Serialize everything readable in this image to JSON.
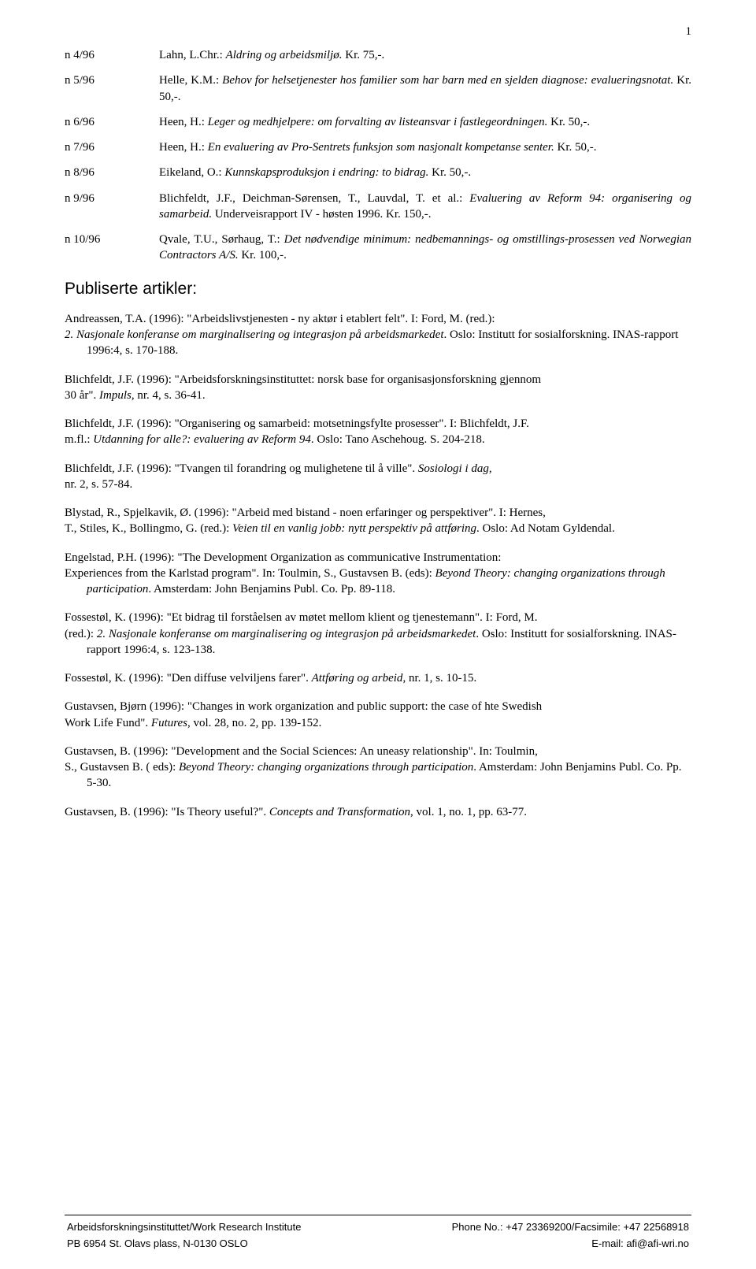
{
  "page_number": "1",
  "entries": [
    {
      "id": "n 4/96",
      "plain_pre": "Lahn, L.Chr.: ",
      "italic": "Aldring og arbeidsmiljø.",
      "plain_post": " Kr. 75,-."
    },
    {
      "id": "n 5/96",
      "plain_pre": "Helle, K.M.: ",
      "italic": "Behov for helsetjenester hos familier som har barn med en sjelden diagnose: evalueringsnotat.",
      "plain_post": " Kr. 50,-."
    },
    {
      "id": "n 6/96",
      "plain_pre": "Heen, H.: ",
      "italic": "Leger og medhjelpere: om forvalting av listeansvar i fastlegeordningen.",
      "plain_post": " Kr. 50,-."
    },
    {
      "id": "n 7/96",
      "plain_pre": "Heen, H.: ",
      "italic": "En evaluering av Pro-Sentrets funksjon som nasjonalt kompetanse senter.",
      "plain_post": " Kr. 50,-."
    },
    {
      "id": "n 8/96",
      "plain_pre": "Eikeland, O.: ",
      "italic": "Kunnskapsproduksjon i endring: to bidrag.",
      "plain_post": " Kr. 50,-."
    },
    {
      "id": "n 9/96",
      "plain_pre": "Blichfeldt, J.F., Deichman-Sørensen, T., Lauvdal, T. et al.: ",
      "italic": "Evaluering av Reform 94: organisering og samarbeid.",
      "plain_post": " Underveisrapport IV - høsten 1996. Kr. 150,-."
    },
    {
      "id": "n 10/96",
      "plain_pre": "Qvale, T.U., Sørhaug, T.: ",
      "italic": "Det nødvendige minimum: nedbemannings- og omstillings-prosessen ved Norwegian Contractors A/S.",
      "plain_post": " Kr. 100,-."
    }
  ],
  "section_heading": "Publiserte artikler:",
  "articles": [
    {
      "lines": [
        [
          {
            "t": "Andreassen, T.A. (1996): \"Arbeidslivstjenesten - ny aktør i etablert felt\". I: Ford, M. (red.):"
          }
        ],
        [
          {
            "t": "2. Nasjonale konferanse om marginalisering og integrasjon på arbeidsmarkedet",
            "i": true
          },
          {
            "t": ". Oslo: Institutt for sosialforskning. INAS-rapport 1996:4, s. 170-188."
          }
        ]
      ]
    },
    {
      "lines": [
        [
          {
            "t": "Blichfeldt, J.F. (1996): \"Arbeidsforskningsinstituttet: norsk base for organisasjonsforskning gjennom"
          }
        ],
        [
          {
            "t": "30 år\". "
          },
          {
            "t": "Impuls",
            "i": true
          },
          {
            "t": ",  nr. 4, s. 36-41."
          }
        ]
      ]
    },
    {
      "lines": [
        [
          {
            "t": "Blichfeldt, J.F. (1996): \"Organisering og samarbeid: motsetningsfylte prosesser\". I: Blichfeldt, J.F."
          }
        ],
        [
          {
            "t": "m.fl.: "
          },
          {
            "t": "Utdanning for alle?: evaluering av Reform 94",
            "i": true
          },
          {
            "t": ". Oslo: Tano Aschehoug. S. 204-218."
          }
        ]
      ]
    },
    {
      "lines": [
        [
          {
            "t": "Blichfeldt, J.F. (1996): \"Tvangen til forandring og mulighetene til å ville\". "
          },
          {
            "t": "Sosiologi i dag",
            "i": true
          },
          {
            "t": ","
          }
        ],
        [
          {
            "t": "nr. 2, s. 57-84."
          }
        ]
      ]
    },
    {
      "lines": [
        [
          {
            "t": "Blystad, R., Spjelkavik, Ø. (1996): \"Arbeid med bistand - noen erfaringer og perspektiver\". I: Hernes,"
          }
        ],
        [
          {
            "t": "T., Stiles, K., Bollingmo, G. (red.): "
          },
          {
            "t": "Veien til en vanlig jobb: nytt perspektiv på attføring",
            "i": true
          },
          {
            "t": ". Oslo: Ad Notam Gyldendal."
          }
        ]
      ]
    },
    {
      "lines": [
        [
          {
            "t": "Engelstad, P.H. (1996): \"The Development Organization as communicative Instrumentation:"
          }
        ],
        [
          {
            "t": "Experiences from the Karlstad program\". In: Toulmin, S., Gustavsen B. (eds): "
          },
          {
            "t": "Beyond Theory: changing organizations through participation",
            "i": true
          },
          {
            "t": ". Amsterdam: John Benjamins Publ. Co. Pp. 89-118."
          }
        ]
      ]
    },
    {
      "lines": [
        [
          {
            "t": "Fossestøl, K. (1996): \"Et bidrag til forståelsen av møtet mellom klient og tjenestemann\". I: Ford, M."
          }
        ],
        [
          {
            "t": "(red.): "
          },
          {
            "t": "2. Nasjonale konferanse om marginalisering og integrasjon på arbeidsmarkedet",
            "i": true
          },
          {
            "t": ". Oslo: Institutt for sosialforskning. INAS-rapport 1996:4, s. 123-138."
          }
        ]
      ]
    },
    {
      "lines": [
        [
          {
            "t": "Fossestøl, K. (1996): \"Den diffuse velviljens farer\". "
          },
          {
            "t": "Attføring og arbeid",
            "i": true
          },
          {
            "t": ", nr. 1, s. 10-15."
          }
        ]
      ]
    },
    {
      "lines": [
        [
          {
            "t": "Gustavsen, Bjørn (1996): \"Changes in work organization and public support: the case of hte Swedish"
          }
        ],
        [
          {
            "t": "Work Life Fund\". "
          },
          {
            "t": "Futures",
            "i": true
          },
          {
            "t": ", vol. 28, no. 2, pp. 139-152."
          }
        ]
      ]
    },
    {
      "lines": [
        [
          {
            "t": "Gustavsen, B. (1996): \"Development and the Social Sciences: An uneasy relationship\". In: Toulmin,"
          }
        ],
        [
          {
            "t": "S., Gustavsen B. ( eds): "
          },
          {
            "t": "Beyond Theory: changing organizations through participation",
            "i": true
          },
          {
            "t": ". Amsterdam: John Benjamins Publ. Co. Pp. 5-30."
          }
        ]
      ]
    },
    {
      "lines": [
        [
          {
            "t": "Gustavsen, B. (1996): \"Is Theory useful?\". "
          },
          {
            "t": "Concepts and Transformation",
            "i": true
          },
          {
            "t": ", vol. 1, no. 1, pp. 63-77."
          }
        ]
      ]
    }
  ],
  "footer": {
    "left1": "Arbeidsforskningsinstituttet/Work Research Institute",
    "left2": "PB 6954 St. Olavs plass, N-0130 OSLO",
    "right1": "Phone No.: +47 23369200/Facsimile: +47 22568918",
    "right2": "E-mail: afi@afi-wri.no"
  }
}
